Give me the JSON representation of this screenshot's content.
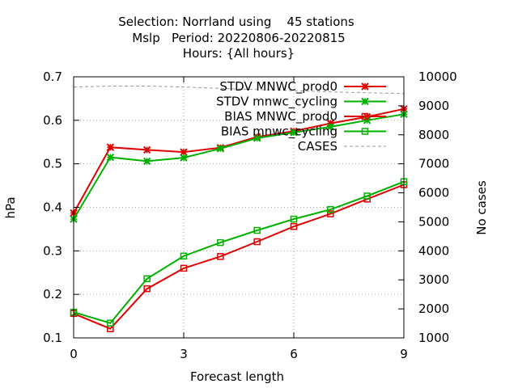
{
  "chart_data": {
    "type": "line",
    "title_lines": [
      "Selection: Norrland using    45 stations",
      "Mslp   Period: 20220806-20220815",
      "Hours: {All hours}"
    ],
    "xlabel": "Forecast length",
    "ylabel": "hPa",
    "y2label": "No cases",
    "xlim": [
      0,
      9
    ],
    "ylim": [
      0.1,
      0.7
    ],
    "y2lim": [
      1000,
      10000
    ],
    "xticks": [
      "0",
      "3",
      "6",
      "9"
    ],
    "yticks": [
      "0.1",
      "0.2",
      "0.3",
      "0.4",
      "0.5",
      "0.6",
      "0.7"
    ],
    "y2ticks": [
      "1000",
      "2000",
      "3000",
      "4000",
      "5000",
      "6000",
      "7000",
      "8000",
      "9000",
      "10000"
    ],
    "grid": true,
    "legend_position": "top-right",
    "x": [
      0,
      1,
      2,
      3,
      4,
      5,
      6,
      7,
      8,
      9
    ],
    "series": [
      {
        "name": "STDV MNWC_prod0",
        "axis": "y",
        "color": "#e00000",
        "marker": "x",
        "values": [
          0.387,
          0.538,
          0.532,
          0.527,
          0.537,
          0.562,
          0.575,
          0.593,
          0.608,
          0.626
        ]
      },
      {
        "name": "STDV mnwc_cycling",
        "axis": "y",
        "color": "#00b000",
        "marker": "x",
        "values": [
          0.373,
          0.515,
          0.506,
          0.514,
          0.535,
          0.559,
          0.572,
          0.585,
          0.6,
          0.614
        ]
      },
      {
        "name": "BIAS MNWC_prod0",
        "axis": "y",
        "color": "#e00000",
        "marker": "square",
        "values": [
          0.156,
          0.121,
          0.213,
          0.26,
          0.287,
          0.321,
          0.356,
          0.385,
          0.419,
          0.452
        ]
      },
      {
        "name": "BIAS mnwc_cycling",
        "axis": "y",
        "color": "#00b000",
        "marker": "square",
        "values": [
          0.159,
          0.134,
          0.236,
          0.288,
          0.319,
          0.347,
          0.373,
          0.395,
          0.426,
          0.459
        ]
      },
      {
        "name": "CASES",
        "axis": "y2",
        "color": "#999999",
        "marker": "none",
        "dash": true,
        "values": [
          9650,
          9680,
          9680,
          9650,
          9600,
          9560,
          9520,
          9480,
          9450,
          9420
        ]
      }
    ]
  }
}
